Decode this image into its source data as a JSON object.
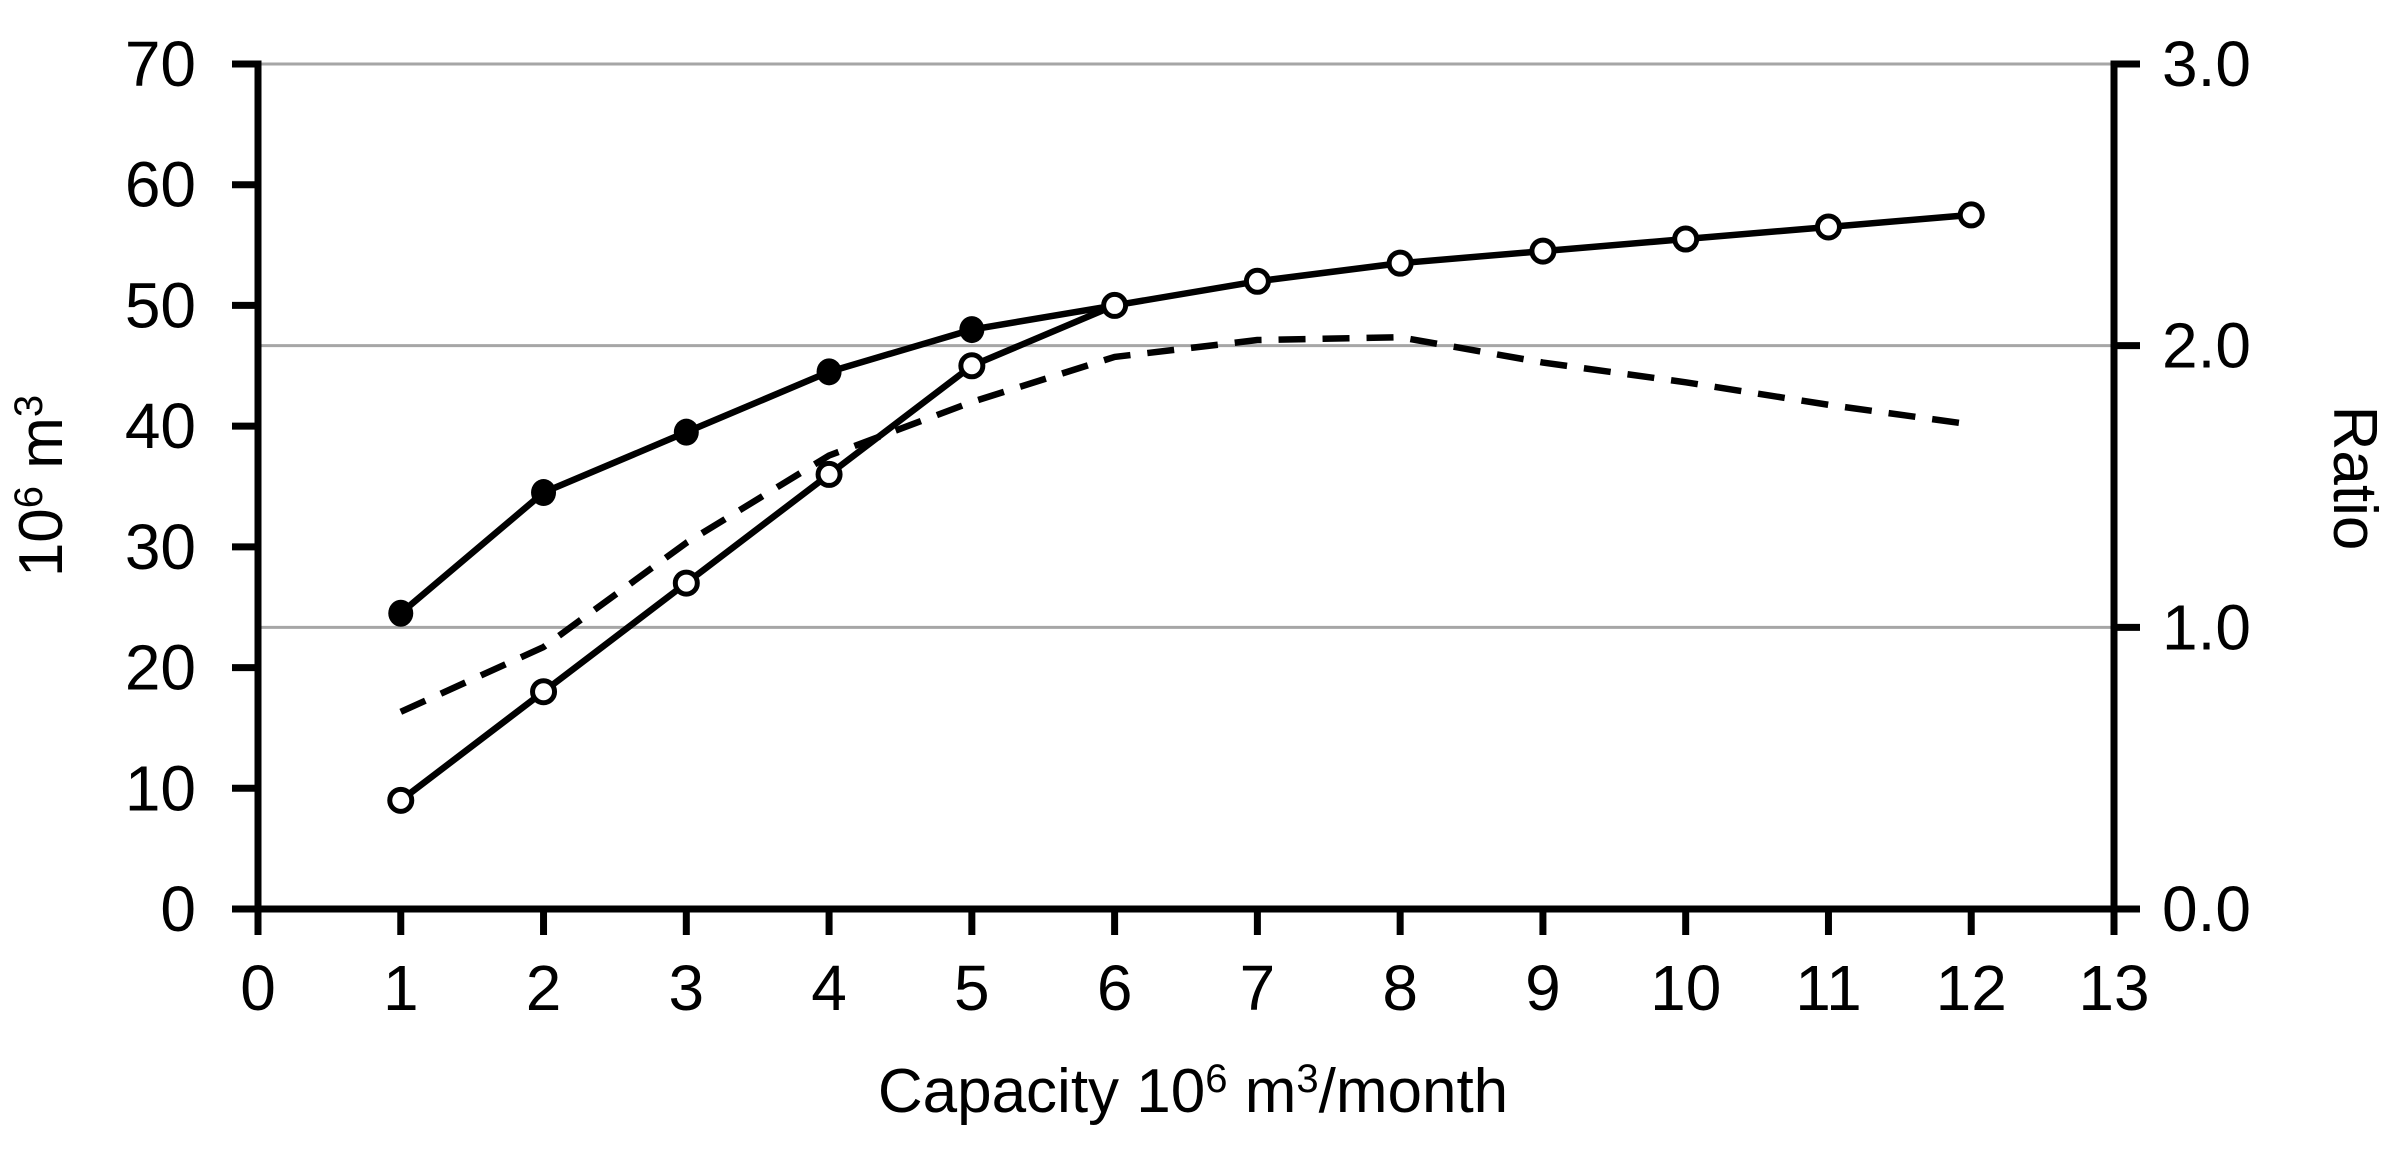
{
  "chart_data": {
    "type": "line",
    "title": "",
    "background": "#FFFFFF",
    "x_axis": {
      "label": "Capacity 10⁶ m³/month",
      "label_parts": [
        {
          "text": "Capacity 10",
          "sup": false
        },
        {
          "text": "6",
          "sup": true
        },
        {
          "text": " m",
          "sup": false
        },
        {
          "text": "3",
          "sup": true
        },
        {
          "text": "/month",
          "sup": false
        }
      ],
      "min": 0,
      "max": 13,
      "ticks": [
        "0",
        "1",
        "2",
        "3",
        "4",
        "5",
        "6",
        "7",
        "8",
        "9",
        "10",
        "11",
        "12",
        "13"
      ],
      "tick_values": [
        0,
        1,
        2,
        3,
        4,
        5,
        6,
        7,
        8,
        9,
        10,
        11,
        12,
        13
      ]
    },
    "y_axis_left": {
      "label": "10⁶ m³",
      "label_parts": [
        {
          "text": "10",
          "sup": false
        },
        {
          "text": "6",
          "sup": true
        },
        {
          "text": " m",
          "sup": false
        },
        {
          "text": "3",
          "sup": true
        }
      ],
      "min": 0,
      "max": 70,
      "ticks": [
        "0",
        "10",
        "20",
        "30",
        "40",
        "50",
        "60",
        "70"
      ],
      "tick_values": [
        0,
        10,
        20,
        30,
        40,
        50,
        60,
        70
      ]
    },
    "y_axis_right": {
      "label": "Ratio",
      "min": 0,
      "max": 3,
      "ticks": [
        "0.0",
        "1.0",
        "2.0",
        "3.0"
      ],
      "tick_values": [
        0,
        1,
        2,
        3
      ]
    },
    "gridlines": {
      "axis": "right",
      "values": [
        1,
        2,
        3
      ],
      "color": "#A6A6A6"
    },
    "legend": "none",
    "series": [
      {
        "name": "ratio-dashed-line",
        "axis": "right",
        "line": "dashed",
        "marker": "none",
        "color": "#000000",
        "x": [
          1,
          2,
          3,
          4,
          5,
          6,
          7,
          8,
          9,
          10,
          11,
          12
        ],
        "y": [
          0.7,
          0.93,
          1.3,
          1.61,
          1.8,
          1.96,
          2.02,
          2.03,
          1.94,
          1.87,
          1.79,
          1.72
        ]
      },
      {
        "name": "storage-filled-circles",
        "axis": "left",
        "line": "solid",
        "marker": "filled-circle",
        "color": "#000000",
        "x": [
          1,
          2,
          3,
          4,
          5,
          6
        ],
        "y": [
          24.5,
          34.5,
          39.5,
          44.5,
          48,
          50
        ],
        "marker_x": [
          1,
          2,
          3,
          4,
          5
        ]
      },
      {
        "name": "storage-open-circles",
        "axis": "left",
        "line": "solid",
        "marker": "open-circle",
        "color": "#000000",
        "x": [
          1,
          2,
          3,
          4,
          5,
          6,
          7,
          8,
          9,
          10,
          11,
          12
        ],
        "y": [
          9,
          18,
          27,
          36,
          45,
          50,
          52,
          53.5,
          54.5,
          55.5,
          56.5,
          57.5
        ]
      }
    ],
    "colors": {
      "line": "#000000",
      "text": "#000000",
      "grid": "#A6A6A6",
      "background": "#FFFFFF"
    }
  }
}
